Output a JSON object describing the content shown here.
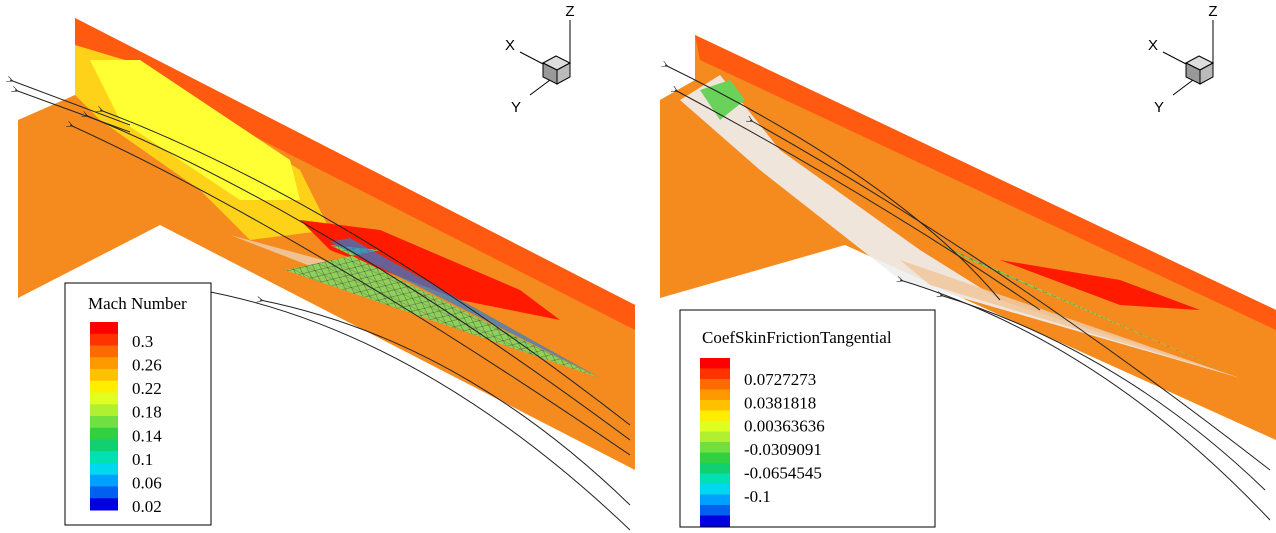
{
  "panels": [
    {
      "axes": {
        "x": "X",
        "y": "Y",
        "z": "Z"
      },
      "legend": {
        "title": "Mach Number",
        "labels": [
          "0.3",
          "0.26",
          "0.22",
          "0.18",
          "0.14",
          "0.1",
          "0.06",
          "0.02"
        ]
      }
    },
    {
      "axes": {
        "x": "X",
        "y": "Y",
        "z": "Z"
      },
      "legend": {
        "title": "CoefSkinFrictionTangential",
        "labels": [
          "0.0727273",
          "0.0381818",
          "0.00363636",
          "-0.0309091",
          "-0.0654545",
          "-0.1"
        ]
      }
    }
  ]
}
